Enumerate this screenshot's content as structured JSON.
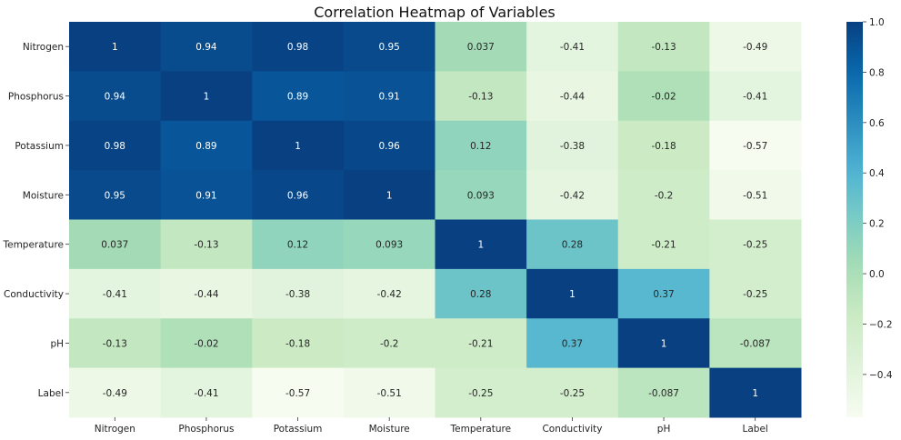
{
  "chart_data": {
    "type": "heatmap",
    "title": "Correlation Heatmap of Variables",
    "xlabel": "",
    "ylabel": "",
    "rows": [
      "Nitrogen",
      "Phosphorus",
      "Potassium",
      "Moisture",
      "Temperature",
      "Conductivity",
      "pH",
      "Label"
    ],
    "columns": [
      "Nitrogen",
      "Phosphorus",
      "Potassium",
      "Moisture",
      "Temperature",
      "Conductivity",
      "pH",
      "Label"
    ],
    "values": [
      [
        1,
        0.94,
        0.98,
        0.95,
        0.037,
        -0.41,
        -0.13,
        -0.49
      ],
      [
        0.94,
        1,
        0.89,
        0.91,
        -0.13,
        -0.44,
        -0.02,
        -0.41
      ],
      [
        0.98,
        0.89,
        1,
        0.96,
        0.12,
        -0.38,
        -0.18,
        -0.57
      ],
      [
        0.95,
        0.91,
        0.96,
        1,
        0.093,
        -0.42,
        -0.2,
        -0.51
      ],
      [
        0.037,
        -0.13,
        0.12,
        0.093,
        1,
        0.28,
        -0.21,
        -0.25
      ],
      [
        -0.41,
        -0.44,
        -0.38,
        -0.42,
        0.28,
        1,
        0.37,
        -0.25
      ],
      [
        -0.13,
        -0.02,
        -0.18,
        -0.2,
        -0.21,
        0.37,
        1,
        -0.087
      ],
      [
        -0.49,
        -0.41,
        -0.57,
        -0.51,
        -0.25,
        -0.25,
        -0.087,
        1
      ]
    ],
    "annotations": [
      [
        "1",
        "0.94",
        "0.98",
        "0.95",
        "0.037",
        "-0.41",
        "-0.13",
        "-0.49"
      ],
      [
        "0.94",
        "1",
        "0.89",
        "0.91",
        "-0.13",
        "-0.44",
        "-0.02",
        "-0.41"
      ],
      [
        "0.98",
        "0.89",
        "1",
        "0.96",
        "0.12",
        "-0.38",
        "-0.18",
        "-0.57"
      ],
      [
        "0.95",
        "0.91",
        "0.96",
        "1",
        "0.093",
        "-0.42",
        "-0.2",
        "-0.51"
      ],
      [
        "0.037",
        "-0.13",
        "0.12",
        "0.093",
        "1",
        "0.28",
        "-0.21",
        "-0.25"
      ],
      [
        "-0.41",
        "-0.44",
        "-0.38",
        "-0.42",
        "0.28",
        "1",
        "0.37",
        "-0.25"
      ],
      [
        "-0.13",
        "-0.02",
        "-0.18",
        "-0.2",
        "-0.21",
        "0.37",
        "1",
        "-0.087"
      ],
      [
        "-0.49",
        "-0.41",
        "-0.57",
        "-0.51",
        "-0.25",
        "-0.25",
        "-0.087",
        "1"
      ]
    ],
    "colormap": "GnBu",
    "color_range": [
      -0.57,
      1
    ],
    "colorbar_ticks": [
      1.0,
      0.8,
      0.6,
      0.4,
      0.2,
      0.0,
      -0.2,
      -0.4
    ],
    "colorbar_tick_labels": [
      "1.0",
      "0.8",
      "0.6",
      "0.4",
      "0.2",
      "0.0",
      "−0.2",
      "−0.4"
    ]
  }
}
